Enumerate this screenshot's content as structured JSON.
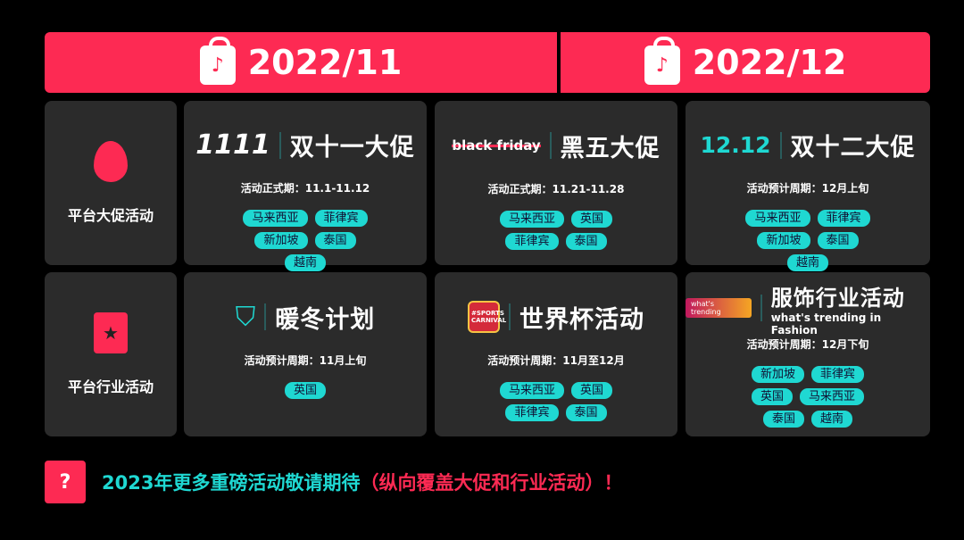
{
  "header": {
    "months": [
      "2022/11",
      "2022/12"
    ],
    "icon": "tiktok-shopping-bag-icon"
  },
  "colors": {
    "accent_red": "#fd2a53",
    "accent_cyan": "#1fd8d2",
    "card": "#2b2b2b"
  },
  "rows": [
    {
      "label": "平台大促活动",
      "icon": "flame-icon",
      "cards": [
        {
          "logo": "1111",
          "title": "双十一大促",
          "period": "活动正式期：11.1-11.12",
          "tags": [
            "马来西亚",
            "菲律宾",
            "新加坡",
            "泰国",
            "越南"
          ]
        },
        {
          "logo": "black friday",
          "title": "黑五大促",
          "period": "活动正式期：11.21-11.28",
          "tags": [
            "马来西亚",
            "英国",
            "菲律宾",
            "泰国"
          ]
        },
        {
          "logo": "12.12",
          "title": "双十二大促",
          "period": "活动预计周期：12月上旬",
          "tags": [
            "马来西亚",
            "菲律宾",
            "新加坡",
            "泰国",
            "越南"
          ]
        }
      ]
    },
    {
      "label": "平台行业活动",
      "icon": "document-star-icon",
      "cards": [
        {
          "logo": "",
          "title": "暖冬计划",
          "period": "活动预计周期：11月上旬",
          "tags": [
            "英国"
          ]
        },
        {
          "logo": "#SPORTS CARNIVAL",
          "title": "世界杯活动",
          "period": "活动预计周期：11月至12月",
          "tags": [
            "马来西亚",
            "英国",
            "菲律宾",
            "泰国"
          ]
        },
        {
          "logo": "what's trending",
          "title": "服饰行业活动",
          "subtitle": "what's trending in Fashion",
          "period": "活动预计周期：12月下旬",
          "tags": [
            "新加坡",
            "菲律宾",
            "英国",
            "马来西亚",
            "泰国",
            "越南"
          ]
        }
      ]
    }
  ],
  "footer": {
    "text_cyan": "2023年更多重磅活动敬请期待",
    "text_red": "（纵向覆盖大促和行业活动）！"
  }
}
